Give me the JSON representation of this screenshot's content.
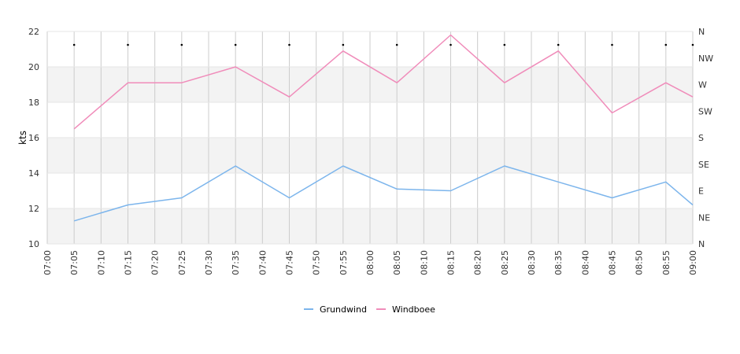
{
  "chart_data": {
    "type": "line",
    "ylabel": "kts",
    "ylim": [
      10,
      22
    ],
    "yticks": [
      10,
      12,
      14,
      16,
      18,
      20,
      22
    ],
    "right_axis": {
      "labels": [
        "N",
        "NE",
        "E",
        "SE",
        "S",
        "SW",
        "W",
        "NW",
        "N"
      ]
    },
    "x_tick_labels": [
      "07:00",
      "07:05",
      "07:10",
      "07:15",
      "07:20",
      "07:25",
      "07:30",
      "07:35",
      "07:40",
      "07:45",
      "07:50",
      "07:55",
      "08:00",
      "08:05",
      "08:10",
      "08:15",
      "08:20",
      "08:25",
      "08:30",
      "08:35",
      "08:40",
      "08:45",
      "08:50",
      "08:55",
      "09:00"
    ],
    "x": [
      "07:05",
      "07:15",
      "07:25",
      "07:35",
      "07:45",
      "07:55",
      "08:05",
      "08:15",
      "08:25",
      "08:35",
      "08:45",
      "08:55",
      "09:00"
    ],
    "series": [
      {
        "name": "Grundwind",
        "color": "#7cb5ec",
        "values": [
          11.3,
          12.2,
          12.6,
          14.4,
          12.6,
          14.4,
          13.1,
          13.0,
          14.4,
          13.5,
          12.6,
          13.5,
          12.2
        ]
      },
      {
        "name": "Windboee",
        "color": "#f08cba",
        "values": [
          16.5,
          19.1,
          19.1,
          20.0,
          18.3,
          20.9,
          19.1,
          21.8,
          19.1,
          20.9,
          17.4,
          19.1,
          18.3
        ]
      }
    ],
    "direction_markers_at": [
      "07:05",
      "07:15",
      "07:25",
      "07:35",
      "07:45",
      "07:55",
      "08:05",
      "08:15",
      "08:25",
      "08:35",
      "08:45",
      "08:55",
      "09:00"
    ],
    "grid": true,
    "legend": "bottom-center"
  }
}
